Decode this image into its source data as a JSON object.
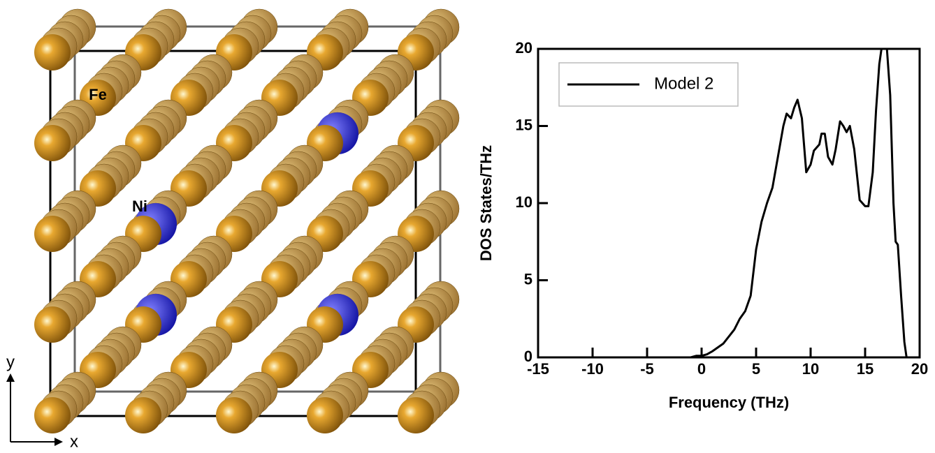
{
  "structure": {
    "atom_labels": [
      "Fe",
      "Ni"
    ],
    "axes": [
      "x",
      "y"
    ]
  },
  "chart_data": {
    "type": "line",
    "xlabel": "Frequency (THz)",
    "ylabel": "DOS States/THz",
    "xlim": [
      -15,
      20
    ],
    "ylim": [
      0,
      20
    ],
    "xticks": [
      -15,
      -10,
      -5,
      0,
      5,
      10,
      15,
      20
    ],
    "yticks": [
      0,
      5,
      10,
      15,
      20
    ],
    "legend": "upper left",
    "series": [
      {
        "name": "Model 2",
        "color": "#000000",
        "x": [
          -1,
          -0.5,
          0,
          0.5,
          1,
          2,
          3,
          3.5,
          4,
          4.5,
          5,
          5.5,
          6,
          6.5,
          7,
          7.5,
          7.8,
          8.2,
          8.5,
          8.8,
          9.2,
          9.6,
          10,
          10.3,
          10.8,
          11,
          11.3,
          11.6,
          12,
          12.3,
          12.7,
          13,
          13.3,
          13.6,
          14,
          14.5,
          15,
          15.3,
          15.7,
          16,
          16.3,
          16.5,
          17,
          17.3,
          17.6,
          17.8,
          18,
          18.3,
          18.6,
          18.8
        ],
        "values": [
          0,
          0.1,
          0.1,
          0.2,
          0.4,
          0.9,
          1.8,
          2.5,
          3,
          4,
          7,
          8.8,
          10,
          11,
          13,
          15,
          15.8,
          15.5,
          16.2,
          16.7,
          15.5,
          12,
          12.5,
          13.4,
          13.8,
          14.5,
          14.5,
          13,
          12.5,
          13.5,
          15.3,
          15,
          14.6,
          15,
          13.5,
          10.2,
          9.8,
          9.8,
          12,
          16,
          19,
          20,
          20,
          17,
          10,
          7.5,
          7.3,
          4,
          1,
          0
        ]
      }
    ]
  }
}
